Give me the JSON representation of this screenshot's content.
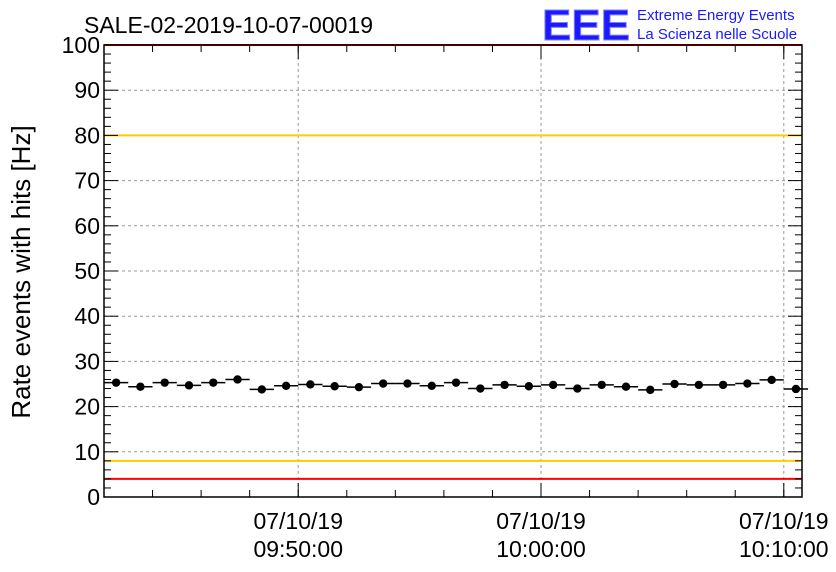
{
  "logo": {
    "mark": "EEE",
    "line1": "Extreme Energy Events",
    "line2": "La Scienza nelle Scuole",
    "color": "#0000ff"
  },
  "chart_data": {
    "type": "scatter",
    "title": "SALE-02-2019-10-07-00019",
    "ylabel": "Rate events with hits [Hz]",
    "xlabel": "",
    "ylim": [
      0,
      100
    ],
    "yticks": [
      0,
      10,
      20,
      30,
      40,
      50,
      60,
      70,
      80,
      90,
      100
    ],
    "xlim": [
      "2019-10-07T09:42:00",
      "2019-10-07T10:10:45"
    ],
    "xticks": [
      {
        "x": "2019-10-07T09:50:00",
        "date": "07/10/19",
        "time": "09:50:00"
      },
      {
        "x": "2019-10-07T10:00:00",
        "date": "07/10/19",
        "time": "10:00:00"
      },
      {
        "x": "2019-10-07T10:10:00",
        "date": "07/10/19",
        "time": "10:10:00"
      }
    ],
    "grid": true,
    "reference_lines": [
      {
        "y": 100,
        "color": "#ff0000"
      },
      {
        "y": 80,
        "color": "#ffcc00"
      },
      {
        "y": 8,
        "color": "#ffcc00"
      },
      {
        "y": 4,
        "color": "#ff0000"
      }
    ],
    "series": [
      {
        "marker_color": "#000000",
        "points": [
          {
            "x": "2019-10-07T09:42:30",
            "y": 25.3
          },
          {
            "x": "2019-10-07T09:43:30",
            "y": 24.4
          },
          {
            "x": "2019-10-07T09:44:30",
            "y": 25.3
          },
          {
            "x": "2019-10-07T09:45:30",
            "y": 24.7
          },
          {
            "x": "2019-10-07T09:46:30",
            "y": 25.3
          },
          {
            "x": "2019-10-07T09:47:30",
            "y": 26.0
          },
          {
            "x": "2019-10-07T09:48:30",
            "y": 23.8
          },
          {
            "x": "2019-10-07T09:49:30",
            "y": 24.6
          },
          {
            "x": "2019-10-07T09:50:30",
            "y": 24.9
          },
          {
            "x": "2019-10-07T09:51:30",
            "y": 24.5
          },
          {
            "x": "2019-10-07T09:52:30",
            "y": 24.3
          },
          {
            "x": "2019-10-07T09:53:30",
            "y": 25.1
          },
          {
            "x": "2019-10-07T09:54:30",
            "y": 25.1
          },
          {
            "x": "2019-10-07T09:55:30",
            "y": 24.6
          },
          {
            "x": "2019-10-07T09:56:30",
            "y": 25.3
          },
          {
            "x": "2019-10-07T09:57:30",
            "y": 24.0
          },
          {
            "x": "2019-10-07T09:58:30",
            "y": 24.8
          },
          {
            "x": "2019-10-07T09:59:30",
            "y": 24.5
          },
          {
            "x": "2019-10-07T10:00:30",
            "y": 24.8
          },
          {
            "x": "2019-10-07T10:01:30",
            "y": 24.0
          },
          {
            "x": "2019-10-07T10:02:30",
            "y": 24.8
          },
          {
            "x": "2019-10-07T10:03:30",
            "y": 24.4
          },
          {
            "x": "2019-10-07T10:04:30",
            "y": 23.7
          },
          {
            "x": "2019-10-07T10:05:30",
            "y": 25.0
          },
          {
            "x": "2019-10-07T10:06:30",
            "y": 24.8
          },
          {
            "x": "2019-10-07T10:07:30",
            "y": 24.8
          },
          {
            "x": "2019-10-07T10:08:30",
            "y": 25.1
          },
          {
            "x": "2019-10-07T10:09:30",
            "y": 25.9
          },
          {
            "x": "2019-10-07T10:10:30",
            "y": 23.9
          }
        ]
      }
    ]
  }
}
